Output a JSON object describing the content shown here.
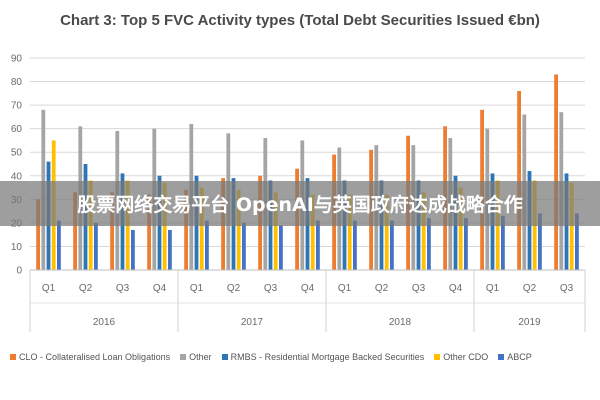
{
  "banner_text": "股票网络交易平台 OpenAI与英国政府达成战略合作",
  "colors": {
    "CLO": "#ed7d31",
    "Other": "#a5a5a5",
    "RMBS": "#2e75b6",
    "OtherCDO": "#ffc000",
    "ABCP": "#4472c4"
  },
  "chart_data": {
    "type": "bar",
    "title": "Chart 3: Top 5 FVC Activity types (Total Debt Securities Issued €bn)",
    "xlabel": "",
    "ylabel": "",
    "ylim": [
      0,
      90
    ],
    "yticks": [
      0,
      10,
      20,
      30,
      40,
      50,
      60,
      70,
      80,
      90
    ],
    "grid": true,
    "legend_position": "bottom",
    "categories": [
      "Q1",
      "Q2",
      "Q3",
      "Q4",
      "Q1",
      "Q2",
      "Q3",
      "Q4",
      "Q1",
      "Q2",
      "Q3",
      "Q4",
      "Q1",
      "Q2",
      "Q3"
    ],
    "groups": [
      {
        "label": "2016",
        "count": 4
      },
      {
        "label": "2017",
        "count": 4
      },
      {
        "label": "2018",
        "count": 4
      },
      {
        "label": "2019",
        "count": 3
      }
    ],
    "series": [
      {
        "name": "CLO - Collateralised Loan Obligations",
        "color": "#ed7d31",
        "values": [
          30,
          33,
          33,
          32,
          34,
          39,
          40,
          43,
          49,
          51,
          57,
          61,
          68,
          76,
          83
        ]
      },
      {
        "name": "Other",
        "color": "#a5a5a5",
        "values": [
          68,
          61,
          59,
          60,
          62,
          58,
          56,
          55,
          52,
          53,
          53,
          56,
          60,
          66,
          67
        ]
      },
      {
        "name": "RMBS - Residential Mortgage Backed Securities",
        "color": "#2e75b6",
        "values": [
          46,
          45,
          41,
          40,
          40,
          39,
          38,
          39,
          38,
          38,
          38,
          40,
          41,
          42,
          41
        ]
      },
      {
        "name": "Other CDO",
        "color": "#ffc000",
        "values": [
          55,
          38,
          38,
          37,
          35,
          34,
          33,
          32,
          32,
          32,
          33,
          35,
          38,
          38,
          37
        ]
      },
      {
        "name": "ABCP",
        "color": "#4472c4",
        "values": [
          21,
          20,
          17,
          17,
          21,
          20,
          19,
          21,
          21,
          21,
          22,
          22,
          23,
          24,
          24
        ]
      }
    ]
  }
}
